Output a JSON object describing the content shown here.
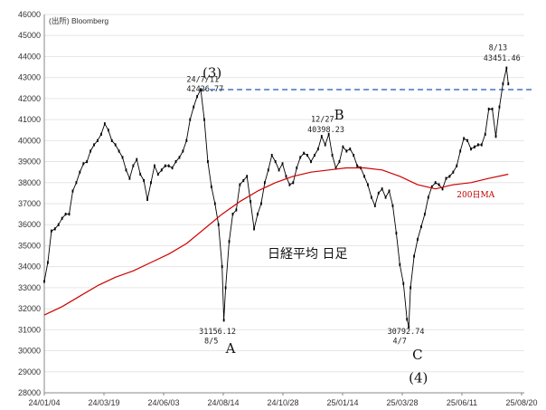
{
  "source_label": "(出所) Bloomberg",
  "chart_title": "日経平均 日足",
  "colors": {
    "price": "#000000",
    "ma": "#d00000",
    "resistance": "#4472c4",
    "axis": "#666666"
  },
  "chart_data": {
    "type": "line",
    "y_axis": {
      "min": 28000,
      "max": 46000,
      "step": 1000,
      "ticks": [
        "28000",
        "29000",
        "30000",
        "31000",
        "32000",
        "33000",
        "34000",
        "35000",
        "36000",
        "37000",
        "38000",
        "39000",
        "40000",
        "41000",
        "42000",
        "43000",
        "44000",
        "45000",
        "46000"
      ]
    },
    "x_axis": {
      "ticks": [
        "24/01/04",
        "24/03/19",
        "24/06/03",
        "24/08/14",
        "24/10/28",
        "25/01/14",
        "25/03/28",
        "25/06/11",
        "25/08/20"
      ]
    },
    "series": [
      {
        "key": "price",
        "points": [
          [
            0,
            33300
          ],
          [
            2,
            34200
          ],
          [
            4,
            35700
          ],
          [
            6,
            35800
          ],
          [
            8,
            36000
          ],
          [
            10,
            36300
          ],
          [
            12,
            36500
          ],
          [
            14,
            36500
          ],
          [
            16,
            37600
          ],
          [
            18,
            38000
          ],
          [
            20,
            38500
          ],
          [
            22,
            38900
          ],
          [
            24,
            39000
          ],
          [
            26,
            39500
          ],
          [
            28,
            39800
          ],
          [
            30,
            40000
          ],
          [
            32,
            40300
          ],
          [
            34,
            40800
          ],
          [
            36,
            40500
          ],
          [
            38,
            40000
          ],
          [
            40,
            39800
          ],
          [
            42,
            39500
          ],
          [
            44,
            39200
          ],
          [
            46,
            38600
          ],
          [
            48,
            38200
          ],
          [
            50,
            38800
          ],
          [
            52,
            39100
          ],
          [
            54,
            38400
          ],
          [
            56,
            38100
          ],
          [
            58,
            37200
          ],
          [
            60,
            38000
          ],
          [
            62,
            38800
          ],
          [
            64,
            38400
          ],
          [
            66,
            38600
          ],
          [
            68,
            38800
          ],
          [
            70,
            38800
          ],
          [
            72,
            38700
          ],
          [
            74,
            39000
          ],
          [
            76,
            39200
          ],
          [
            78,
            39500
          ],
          [
            80,
            40000
          ],
          [
            82,
            41000
          ],
          [
            84,
            41600
          ],
          [
            86,
            42100
          ],
          [
            88,
            42426
          ],
          [
            90,
            41000
          ],
          [
            92,
            39000
          ],
          [
            94,
            37800
          ],
          [
            96,
            37000
          ],
          [
            98,
            36000
          ],
          [
            100,
            34000
          ],
          [
            101,
            31456
          ],
          [
            102,
            33000
          ],
          [
            104,
            35200
          ],
          [
            106,
            36500
          ],
          [
            108,
            36700
          ],
          [
            110,
            37900
          ],
          [
            112,
            38100
          ],
          [
            114,
            38300
          ],
          [
            116,
            37100
          ],
          [
            118,
            35800
          ],
          [
            120,
            36500
          ],
          [
            122,
            37000
          ],
          [
            124,
            38000
          ],
          [
            126,
            38600
          ],
          [
            128,
            39300
          ],
          [
            130,
            39000
          ],
          [
            132,
            38600
          ],
          [
            134,
            38900
          ],
          [
            136,
            38300
          ],
          [
            138,
            37900
          ],
          [
            140,
            38000
          ],
          [
            142,
            38700
          ],
          [
            144,
            39200
          ],
          [
            146,
            39400
          ],
          [
            148,
            39300
          ],
          [
            150,
            39000
          ],
          [
            152,
            39300
          ],
          [
            154,
            39600
          ],
          [
            156,
            40200
          ],
          [
            158,
            39800
          ],
          [
            160,
            40300
          ],
          [
            162,
            39300
          ],
          [
            164,
            38700
          ],
          [
            166,
            39000
          ],
          [
            168,
            39700
          ],
          [
            170,
            39500
          ],
          [
            172,
            39600
          ],
          [
            174,
            39300
          ],
          [
            176,
            38800
          ],
          [
            178,
            38700
          ],
          [
            180,
            38300
          ],
          [
            182,
            37900
          ],
          [
            184,
            37300
          ],
          [
            186,
            36900
          ],
          [
            188,
            37500
          ],
          [
            190,
            37700
          ],
          [
            192,
            37300
          ],
          [
            194,
            37600
          ],
          [
            196,
            36900
          ],
          [
            198,
            35600
          ],
          [
            200,
            34100
          ],
          [
            202,
            33200
          ],
          [
            204,
            31500
          ],
          [
            205,
            31136
          ],
          [
            206,
            33000
          ],
          [
            208,
            34500
          ],
          [
            210,
            35300
          ],
          [
            212,
            35900
          ],
          [
            214,
            36500
          ],
          [
            216,
            37300
          ],
          [
            218,
            37800
          ],
          [
            220,
            38000
          ],
          [
            222,
            37900
          ],
          [
            224,
            37700
          ],
          [
            226,
            38200
          ],
          [
            228,
            38300
          ],
          [
            230,
            38500
          ],
          [
            232,
            38800
          ],
          [
            234,
            39500
          ],
          [
            236,
            40100
          ],
          [
            238,
            40000
          ],
          [
            240,
            39600
          ],
          [
            242,
            39700
          ],
          [
            244,
            39800
          ],
          [
            246,
            39800
          ],
          [
            248,
            40300
          ],
          [
            250,
            41500
          ],
          [
            252,
            41500
          ],
          [
            254,
            40200
          ],
          [
            256,
            41600
          ],
          [
            258,
            42700
          ],
          [
            260,
            43451
          ],
          [
            261,
            42700
          ]
        ]
      },
      {
        "key": "ma",
        "points": [
          [
            0,
            31700
          ],
          [
            10,
            32100
          ],
          [
            20,
            32600
          ],
          [
            30,
            33100
          ],
          [
            40,
            33500
          ],
          [
            50,
            33800
          ],
          [
            60,
            34200
          ],
          [
            70,
            34600
          ],
          [
            80,
            35100
          ],
          [
            90,
            35800
          ],
          [
            100,
            36500
          ],
          [
            110,
            37100
          ],
          [
            120,
            37600
          ],
          [
            130,
            38000
          ],
          [
            140,
            38300
          ],
          [
            150,
            38500
          ],
          [
            160,
            38600
          ],
          [
            170,
            38700
          ],
          [
            180,
            38700
          ],
          [
            190,
            38600
          ],
          [
            200,
            38300
          ],
          [
            210,
            37900
          ],
          [
            220,
            37700
          ],
          [
            230,
            37900
          ],
          [
            240,
            38000
          ],
          [
            250,
            38200
          ],
          [
            261,
            38400
          ]
        ]
      }
    ],
    "resistance_level": 42426,
    "annotations": [
      {
        "id": "ann-3",
        "text": "(3)",
        "style": "bigletter",
        "x": 89,
        "y": 43000
      },
      {
        "id": "ann-3-date",
        "text": "24/7/11",
        "style": "small",
        "x": 80,
        "y": 42800
      },
      {
        "id": "ann-3-val",
        "text": "42426.77",
        "style": "small",
        "x": 80,
        "y": 42350
      },
      {
        "id": "ann-B",
        "text": "B",
        "style": "bigletter",
        "x": 163,
        "y": 41000
      },
      {
        "id": "ann-B-date",
        "text": "12/27",
        "style": "small",
        "x": 150,
        "y": 40900
      },
      {
        "id": "ann-B-val",
        "text": "40398.23",
        "style": "small",
        "x": 148,
        "y": 40400
      },
      {
        "id": "ann-A-val",
        "text": "31156.12",
        "style": "small",
        "x": 87,
        "y": 30800
      },
      {
        "id": "ann-A-date",
        "text": "8/5",
        "style": "small",
        "x": 90,
        "y": 30350
      },
      {
        "id": "ann-A",
        "text": "A",
        "style": "bigletter",
        "x": 102,
        "y": 29900
      },
      {
        "id": "ann-C-val",
        "text": "30792.74",
        "style": "small",
        "x": 193,
        "y": 30800
      },
      {
        "id": "ann-C-date",
        "text": "4/7",
        "style": "small",
        "x": 196,
        "y": 30350
      },
      {
        "id": "ann-C",
        "text": "C",
        "style": "bigletter",
        "x": 207,
        "y": 29600
      },
      {
        "id": "ann-4",
        "text": "(4)",
        "style": "bigletter",
        "x": 205,
        "y": 28500
      },
      {
        "id": "ann-8-13",
        "text": "8/13",
        "style": "small",
        "x": 250,
        "y": 44300
      },
      {
        "id": "ann-8-13-val",
        "text": "43451.46",
        "style": "small",
        "x": 247,
        "y": 43800
      },
      {
        "id": "ann-ma",
        "text": "200日MA",
        "style": "ma",
        "x": 232,
        "y": 37300
      }
    ]
  }
}
